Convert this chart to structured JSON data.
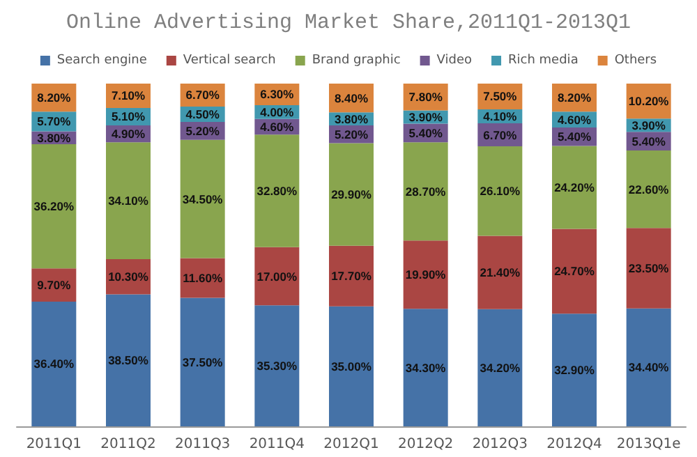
{
  "chart_data": {
    "type": "bar",
    "stacked": true,
    "title": "Online Advertising Market Share,2011Q1-2013Q1",
    "legend": "top",
    "categories": [
      "2011Q1",
      "2011Q2",
      "2011Q3",
      "2011Q4",
      "2012Q1",
      "2012Q2",
      "2012Q3",
      "2012Q4",
      "2013Q1e"
    ],
    "series": [
      {
        "name": "Search engine",
        "color": "#4572a7",
        "values": [
          36.4,
          38.5,
          37.5,
          35.3,
          35.0,
          34.3,
          34.2,
          32.9,
          34.4
        ],
        "value_labels": [
          "36.40%",
          "38.50%",
          "37.50%",
          "35.30%",
          "35.00%",
          "34.30%",
          "34.20%",
          "32.90%",
          "34.40%"
        ]
      },
      {
        "name": "Vertical search",
        "color": "#aa4643",
        "values": [
          9.7,
          10.3,
          11.6,
          17.0,
          17.7,
          19.9,
          21.4,
          24.7,
          23.5
        ],
        "value_labels": [
          "9.70%",
          "10.30%",
          "11.60%",
          "17.00%",
          "17.70%",
          "19.90%",
          "21.40%",
          "24.70%",
          "23.50%"
        ]
      },
      {
        "name": "Brand graphic",
        "color": "#89a54e",
        "values": [
          36.2,
          34.1,
          34.5,
          32.8,
          29.9,
          28.7,
          26.1,
          24.2,
          22.6
        ],
        "value_labels": [
          "36.20%",
          "34.10%",
          "34.50%",
          "32.80%",
          "29.90%",
          "28.70%",
          "26.10%",
          "24.20%",
          "22.60%"
        ]
      },
      {
        "name": "Video",
        "color": "#71588f",
        "values": [
          3.8,
          4.9,
          5.2,
          4.6,
          5.2,
          5.4,
          6.7,
          5.4,
          5.4
        ],
        "value_labels": [
          "3.80%",
          "4.90%",
          "5.20%",
          "4.60%",
          "5.20%",
          "5.40%",
          "6.70%",
          "5.40%",
          "5.40%"
        ]
      },
      {
        "name": "Rich media",
        "color": "#4198af",
        "values": [
          5.7,
          5.1,
          4.5,
          4.0,
          3.8,
          3.9,
          4.1,
          4.6,
          3.9
        ],
        "value_labels": [
          "5.70%",
          "5.10%",
          "4.50%",
          "4.00%",
          "3.80%",
          "3.90%",
          "4.10%",
          "4.60%",
          "3.90%"
        ]
      },
      {
        "name": "Others",
        "color": "#db843d",
        "values": [
          8.2,
          7.1,
          6.7,
          6.3,
          8.4,
          7.8,
          7.5,
          8.2,
          10.2
        ],
        "value_labels": [
          "8.20%",
          "7.10%",
          "6.70%",
          "6.30%",
          "8.40%",
          "7.80%",
          "7.50%",
          "8.20%",
          "10.20%"
        ]
      }
    ]
  }
}
